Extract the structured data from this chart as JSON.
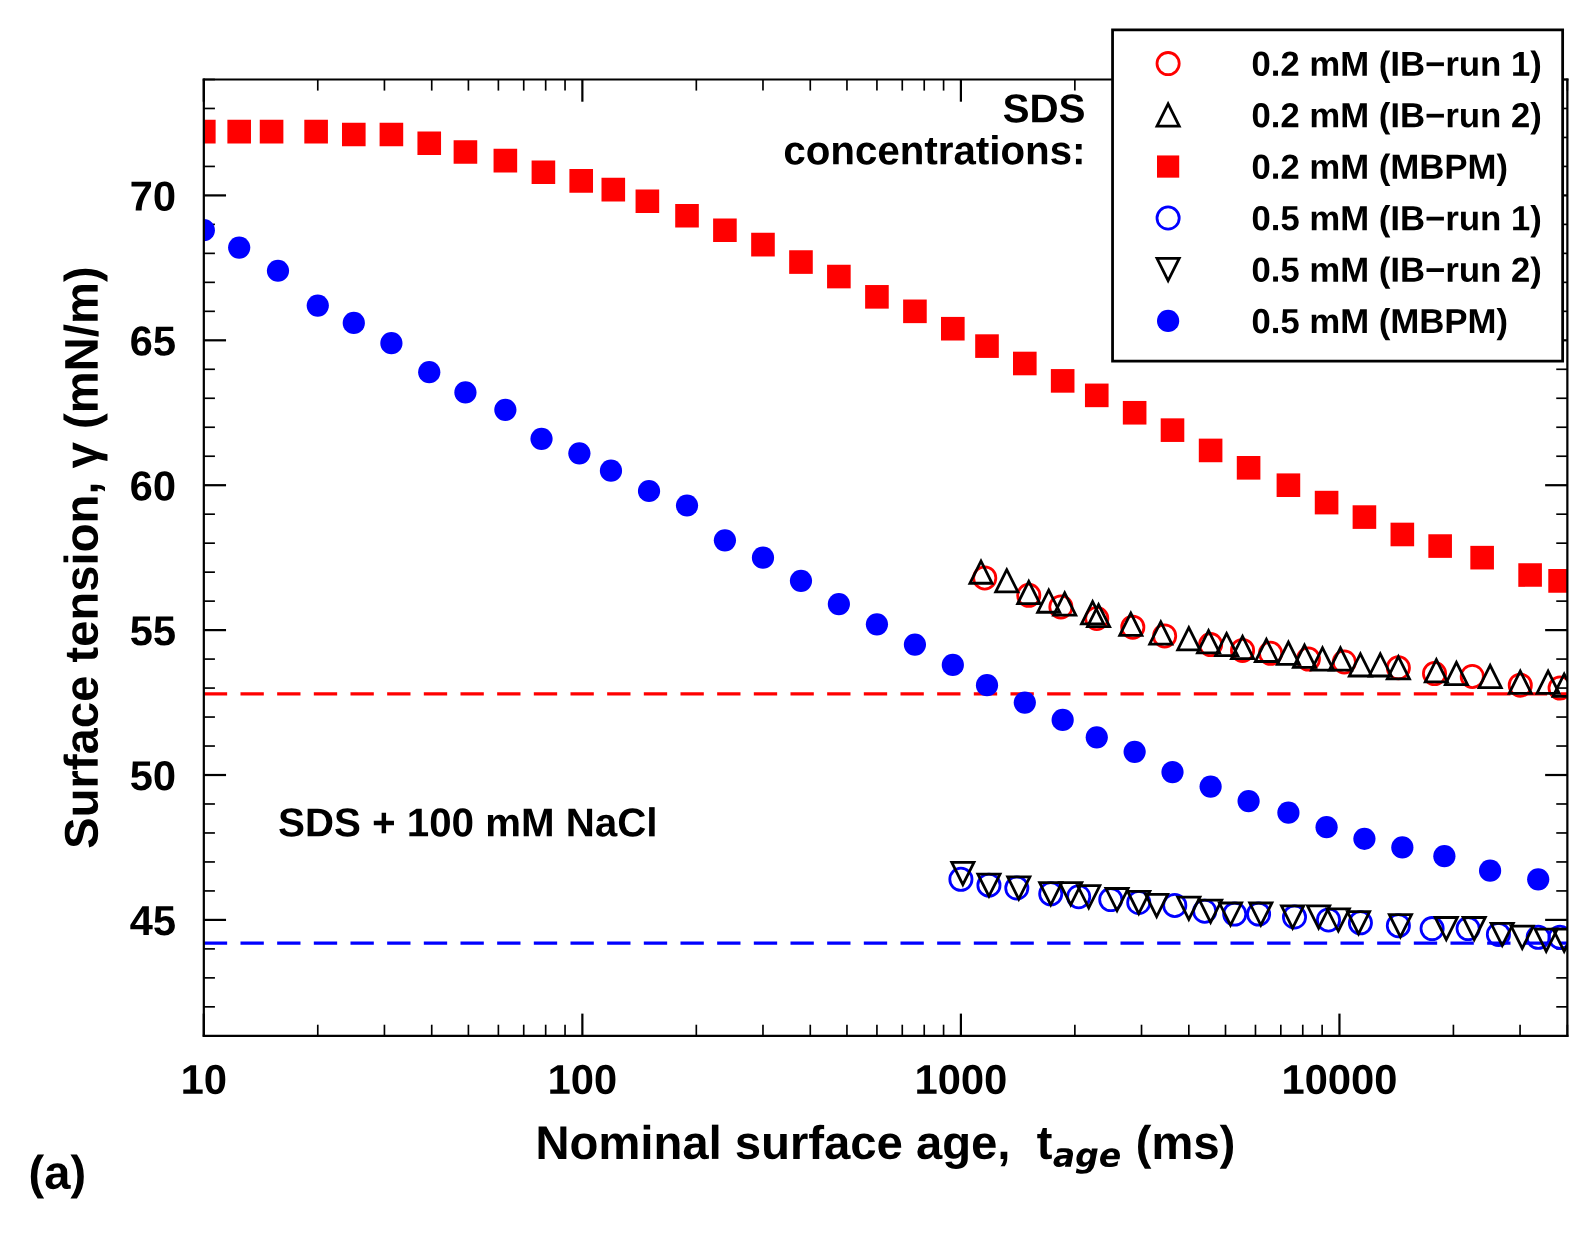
{
  "chart_data": {
    "type": "scatter",
    "xlabel": "Nominal surface age,  t$_{age}$ (ms)",
    "ylabel": "Surface tension, γ (mN/m)",
    "log": "x",
    "xlim": [
      10,
      40000
    ],
    "xticks": [
      10,
      100,
      1000,
      10000
    ],
    "ylim": [
      41,
      74
    ],
    "yticks": [
      45,
      50,
      55,
      60,
      65,
      70
    ],
    "grid": false,
    "legend": "top right",
    "annotations": [
      "SDS\nconcentrations:",
      "SDS + 100 mM NaCl",
      "(a)"
    ],
    "ref_lines": [
      {
        "axis": "y",
        "value": 52.8,
        "color": "#ff0000",
        "line_style": "dashed"
      },
      {
        "axis": "y",
        "value": 44.2,
        "color": "#0000ff",
        "line_style": "dashed"
      }
    ],
    "series": [
      {
        "name": "0.2 mM (IB−run 1)",
        "color": "#ff0000",
        "marker": "circle-open",
        "x": [
          1156,
          1511,
          1837,
          2285,
          2845,
          3453,
          4567,
          5546,
          6577,
          8279,
          10300,
          14310,
          17830,
          22430,
          30040,
          38270
        ],
        "values": [
          56.8,
          56.2,
          55.8,
          55.4,
          55.1,
          54.8,
          54.5,
          54.3,
          54.2,
          54.0,
          53.9,
          53.7,
          53.5,
          53.4,
          53.1,
          53.0
        ]
      },
      {
        "name": "0.2 mM (IB−run 2)",
        "color": "#000000",
        "marker": "triangle-open",
        "x": [
          1130,
          1322,
          1511,
          1706,
          1880,
          2228,
          2310,
          2811,
          3373,
          4000,
          4510,
          5035,
          5546,
          6412,
          7331,
          8084,
          9020,
          10060,
          11360,
          12820,
          14310,
          18030,
          20370,
          25010,
          30040,
          35580,
          39230
        ],
        "values": [
          57.0,
          56.7,
          56.3,
          56.0,
          55.9,
          55.6,
          55.5,
          55.2,
          54.9,
          54.7,
          54.6,
          54.5,
          54.4,
          54.3,
          54.2,
          54.1,
          54.0,
          54.0,
          53.8,
          53.8,
          53.7,
          53.6,
          53.5,
          53.4,
          53.2,
          53.2,
          53.1
        ]
      },
      {
        "name": "0.2 mM (MBPM)",
        "color": "#ff0000",
        "marker": "square",
        "x": [
          10,
          12.4,
          15.1,
          19.8,
          24.9,
          31.3,
          39.4,
          49.1,
          62.6,
          78.9,
          99.3,
          120.7,
          148.5,
          189,
          238,
          300,
          378,
          476,
          600,
          756,
          952,
          1172,
          1475,
          1857,
          2285,
          2877,
          3622,
          4567,
          5754,
          7331,
          9247,
          11640,
          14660,
          18450,
          23820,
          31890,
          38270
        ],
        "values": [
          72.2,
          72.2,
          72.2,
          72.2,
          72.1,
          72.1,
          71.8,
          71.5,
          71.2,
          70.8,
          70.5,
          70.2,
          69.8,
          69.3,
          68.8,
          68.3,
          67.7,
          67.2,
          66.5,
          66.0,
          65.4,
          64.8,
          64.2,
          63.6,
          63.1,
          62.5,
          61.9,
          61.2,
          60.6,
          60.0,
          59.4,
          58.9,
          58.3,
          57.9,
          57.5,
          56.9,
          56.7
        ]
      },
      {
        "name": "0.5 mM (IB−run 1)",
        "color": "#0000ff",
        "marker": "circle-open",
        "x": [
          1000,
          1186,
          1405,
          1727,
          2047,
          2488,
          2950,
          3672,
          4406,
          5288,
          6115,
          7608,
          9355,
          11360,
          14310,
          17570,
          21870,
          26300,
          33500,
          38270
        ],
        "values": [
          46.4,
          46.2,
          46.1,
          45.9,
          45.8,
          45.7,
          45.6,
          45.5,
          45.3,
          45.2,
          45.2,
          45.1,
          45.0,
          44.9,
          44.8,
          44.7,
          44.7,
          44.5,
          44.4,
          44.4
        ]
      },
      {
        "name": "0.5 mM (IB−run 2)",
        "color": "#000000",
        "marker": "triangle-down-open",
        "x": [
          1012,
          1186,
          1422,
          1727,
          1950,
          2176,
          2585,
          2950,
          3289,
          4000,
          4567,
          5155,
          6198,
          7520,
          8810,
          9930,
          11230,
          14490,
          19150,
          22700,
          26910,
          30400,
          35170,
          39230
        ],
        "values": [
          46.6,
          46.2,
          46.1,
          45.9,
          45.9,
          45.8,
          45.7,
          45.6,
          45.5,
          45.4,
          45.3,
          45.2,
          45.2,
          45.1,
          45.1,
          45.0,
          44.9,
          44.8,
          44.7,
          44.7,
          44.5,
          44.4,
          44.3,
          44.3
        ]
      },
      {
        "name": "0.5 mM (MBPM)",
        "color": "#0000ff",
        "marker": "circle",
        "x": [
          10,
          12.4,
          15.7,
          20.0,
          24.9,
          31.3,
          39.4,
          49.1,
          62.6,
          78.0,
          98.2,
          119,
          150,
          189,
          238,
          300,
          378,
          476,
          600,
          756,
          952,
          1172,
          1475,
          1857,
          2285,
          2877,
          3622,
          4567,
          5754,
          7331,
          9247,
          11640,
          14660,
          18930,
          25000,
          33500
        ],
        "values": [
          68.8,
          68.2,
          67.4,
          66.2,
          65.6,
          64.9,
          63.9,
          63.2,
          62.6,
          61.6,
          61.1,
          60.5,
          59.8,
          59.3,
          58.1,
          57.5,
          56.7,
          55.9,
          55.2,
          54.5,
          53.8,
          53.1,
          52.5,
          51.9,
          51.3,
          50.8,
          50.1,
          49.6,
          49.1,
          48.7,
          48.2,
          47.8,
          47.5,
          47.2,
          46.7,
          46.4
        ]
      }
    ]
  }
}
